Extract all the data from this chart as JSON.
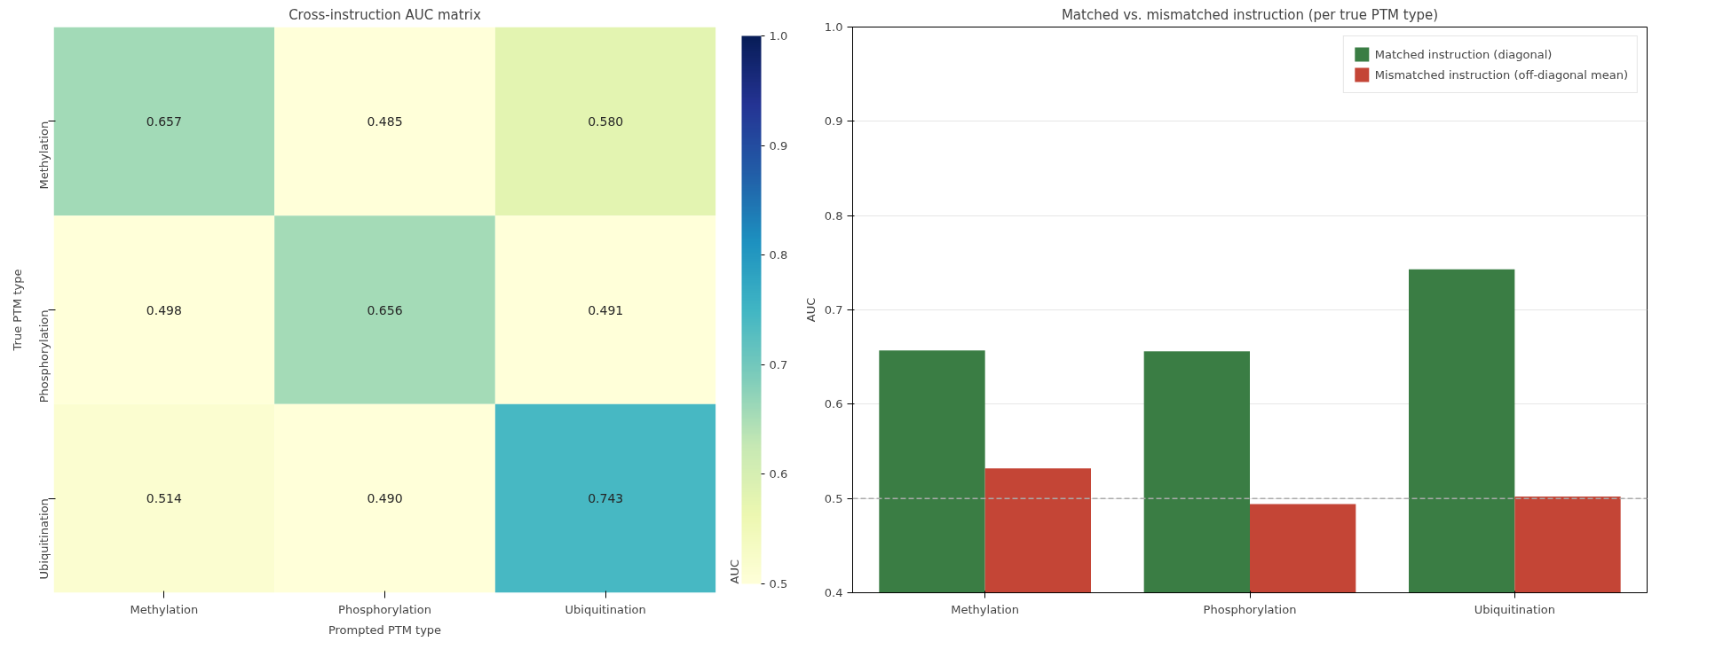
{
  "chart_data": [
    {
      "type": "heatmap",
      "title": "Cross-instruction AUC matrix",
      "xlabel": "Prompted PTM type",
      "ylabel": "True PTM type",
      "clabel": "AUC",
      "categories": [
        "Methylation",
        "Phosphorylation",
        "Ubiquitination"
      ],
      "y_categories": [
        "Methylation",
        "Phosphorylation",
        "Ubiquitination"
      ],
      "cells": [
        [
          0.657,
          0.485,
          0.58
        ],
        [
          0.498,
          0.656,
          0.491
        ],
        [
          0.514,
          0.49,
          0.743
        ]
      ],
      "cell_labels": [
        [
          "0.657",
          "0.485",
          "0.580"
        ],
        [
          "0.498",
          "0.656",
          "0.491"
        ],
        [
          "0.514",
          "0.490",
          "0.743"
        ]
      ],
      "clim": [
        0.5,
        1.0
      ],
      "cticks": [
        0.5,
        0.6,
        0.7,
        0.8,
        0.9,
        {
          "value": 1,
          "label": "1.0"
        }
      ],
      "data_labels": true
    },
    {
      "type": "bar",
      "title": "Matched vs. mismatched instruction (per true PTM type)",
      "ylabel": "AUC",
      "categories": [
        "Methylation",
        "Phosphorylation",
        "Ubiquitination"
      ],
      "series": [
        {
          "name": "Matched instruction (diagonal)",
          "color": "#3a7d44",
          "values": [
            0.657,
            0.656,
            0.743
          ]
        },
        {
          "name": "Mismatched instruction (off-diagonal mean)",
          "color": "#c44536",
          "values": [
            0.532,
            0.494,
            0.502
          ]
        }
      ],
      "ylim": [
        0.4,
        1.0
      ],
      "yticks": [
        0.4,
        0.5,
        0.6,
        0.7,
        0.8,
        0.9,
        {
          "value": 1,
          "label": "1.0"
        }
      ],
      "grid": "y",
      "legend": "top right",
      "ref_lines": [
        {
          "axis": "y",
          "value": 0.5,
          "color": "#aaaaaa",
          "line_style": "dashed"
        }
      ]
    }
  ]
}
